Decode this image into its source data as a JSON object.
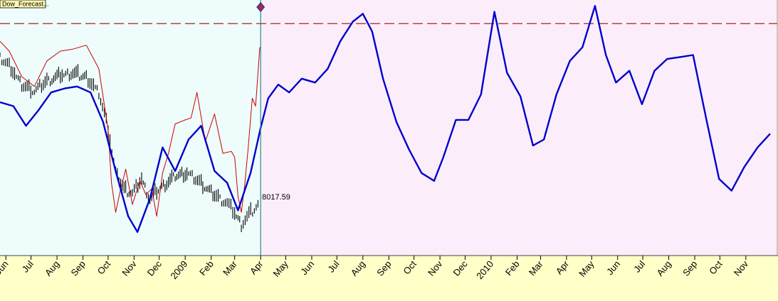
{
  "chart_data": {
    "type": "line",
    "title": "",
    "xlabel": "",
    "ylabel": "",
    "tag_label": "Dow_Forecast...",
    "last_price_label": "8017.59",
    "x_tick_labels": [
      "Jun",
      "Jul",
      "Aug",
      "Sep",
      "Oct",
      "Nov",
      "Dec",
      "2009",
      "Feb",
      "Mar",
      "Apr",
      "May",
      "Jun",
      "Jul",
      "Aug",
      "Sep",
      "Oct",
      "Nov",
      "Dec",
      "2010",
      "Feb",
      "Mar",
      "Apr",
      "May",
      "Jun",
      "Jul",
      "Aug",
      "Sep",
      "Oct",
      "Nov"
    ],
    "x_tick_dates": [
      "2008-06",
      "2008-07",
      "2008-08",
      "2008-09",
      "2008-10",
      "2008-11",
      "2008-12",
      "2009-01",
      "2009-02",
      "2009-03",
      "2009-04",
      "2009-05",
      "2009-06",
      "2009-07",
      "2009-08",
      "2009-09",
      "2009-10",
      "2009-11",
      "2009-12",
      "2010-01",
      "2010-02",
      "2010-03",
      "2010-04",
      "2010-05",
      "2010-06",
      "2010-07",
      "2010-08",
      "2010-09",
      "2010-10",
      "2010-11"
    ],
    "x_range": [
      "2008-05-25",
      "2010-11-30"
    ],
    "forecast_start": "2009-04-01",
    "grid": false,
    "legend": "none",
    "colors": {
      "history_background": "#eefcfc",
      "forecast_background": "#fbeefa",
      "axis_background": "#ffffc8",
      "price": "#000000",
      "red_series": "#cc0000",
      "forecast_line": "#0000cc",
      "dashed_level": "#aa2222",
      "split_line": "#2a8a8a",
      "marker": "#cc2222"
    },
    "series": [
      {
        "role": "price-bars",
        "color": "#000000",
        "x": [
          "2008-05-25",
          "2008-06-05",
          "2008-06-20",
          "2008-07-05",
          "2008-07-20",
          "2008-08-05",
          "2008-08-20",
          "2008-09-05",
          "2008-09-20",
          "2008-10-01",
          "2008-10-10",
          "2008-10-20",
          "2008-10-30",
          "2008-11-10",
          "2008-11-20",
          "2008-11-30",
          "2008-12-10",
          "2008-12-20",
          "2009-01-05",
          "2009-01-20",
          "2009-02-05",
          "2009-02-20",
          "2009-03-01",
          "2009-03-09",
          "2009-03-18",
          "2009-03-31"
        ],
        "y": [
          1000,
          960,
          860,
          830,
          880,
          910,
          920,
          900,
          820,
          640,
          420,
          330,
          310,
          380,
          280,
          330,
          360,
          400,
          410,
          360,
          300,
          260,
          210,
          150,
          200,
          260
        ]
      },
      {
        "role": "red-line",
        "color": "#cc0000",
        "x": [
          "2008-05-25",
          "2008-06-05",
          "2008-06-20",
          "2008-07-05",
          "2008-07-20",
          "2008-08-05",
          "2008-08-20",
          "2008-09-05",
          "2008-09-20",
          "2008-10-01",
          "2008-10-05",
          "2008-10-10",
          "2008-10-15",
          "2008-10-22",
          "2008-10-30",
          "2008-11-08",
          "2008-11-15",
          "2008-11-22",
          "2008-11-28",
          "2008-12-05",
          "2008-12-12",
          "2008-12-20",
          "2009-01-01",
          "2009-01-08",
          "2009-01-15",
          "2009-01-25",
          "2009-02-05",
          "2009-02-15",
          "2009-02-25",
          "2009-03-01",
          "2009-03-05",
          "2009-03-09",
          "2009-03-13",
          "2009-03-17",
          "2009-03-22",
          "2009-03-26",
          "2009-03-31"
        ],
        "y": [
          1090,
          1040,
          910,
          860,
          990,
          1040,
          1050,
          1070,
          950,
          640,
          370,
          220,
          320,
          440,
          260,
          380,
          310,
          340,
          200,
          420,
          520,
          670,
          690,
          700,
          830,
          580,
          720,
          520,
          530,
          500,
          300,
          220,
          360,
          540,
          800,
          760,
          1060
        ]
      },
      {
        "role": "forecast",
        "color": "#0000cc",
        "x": [
          "2008-05-25",
          "2008-06-10",
          "2008-06-25",
          "2008-07-10",
          "2008-07-25",
          "2008-08-10",
          "2008-08-25",
          "2008-09-10",
          "2008-09-25",
          "2008-10-10",
          "2008-10-25",
          "2008-11-05",
          "2008-11-20",
          "2008-12-05",
          "2008-12-20",
          "2009-01-05",
          "2009-01-20",
          "2009-02-05",
          "2009-02-20",
          "2009-03-05",
          "2009-03-20",
          "2009-04-01",
          "2009-04-10",
          "2009-04-22",
          "2009-05-05",
          "2009-05-20",
          "2009-06-05",
          "2009-06-20",
          "2009-07-05",
          "2009-07-20",
          "2009-08-01",
          "2009-08-12",
          "2009-08-25",
          "2009-09-10",
          "2009-09-25",
          "2009-10-10",
          "2009-10-25",
          "2009-11-05",
          "2009-11-20",
          "2009-12-05",
          "2009-12-20",
          "2010-01-05",
          "2010-01-20",
          "2010-02-05",
          "2010-02-20",
          "2010-03-05",
          "2010-03-20",
          "2010-04-05",
          "2010-04-20",
          "2010-05-05",
          "2010-05-18",
          "2010-05-30",
          "2010-06-15",
          "2010-06-30",
          "2010-07-15",
          "2010-07-30",
          "2010-08-15",
          "2010-08-30",
          "2010-09-15",
          "2010-09-30",
          "2010-10-15",
          "2010-10-30",
          "2010-11-15",
          "2010-11-30"
        ],
        "y": [
          780,
          760,
          660,
          740,
          830,
          850,
          860,
          830,
          680,
          430,
          200,
          120,
          290,
          550,
          430,
          590,
          660,
          430,
          370,
          230,
          420,
          650,
          800,
          870,
          830,
          900,
          880,
          950,
          1090,
          1190,
          1230,
          1140,
          900,
          680,
          540,
          420,
          380,
          500,
          690,
          690,
          820,
          1240,
          930,
          810,
          560,
          590,
          820,
          990,
          1060,
          1270,
          1020,
          880,
          940,
          770,
          940,
          1000,
          1010,
          1020,
          690,
          390,
          330,
          450,
          550,
          620
        ]
      }
    ],
    "reference_lines": [
      {
        "role": "dashed-level",
        "y": 1180
      }
    ],
    "y_range": [
      0,
      1300
    ]
  }
}
